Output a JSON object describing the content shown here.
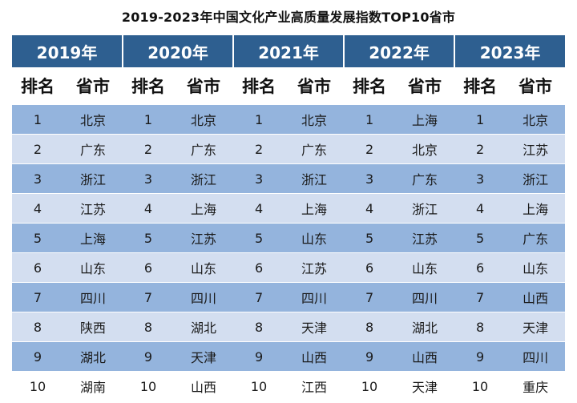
{
  "title": "2019-2023年中国文化产业高质量发展指数TOP10省市",
  "years": [
    "2019年",
    "2020年",
    "2021年",
    "2022年",
    "2023年"
  ],
  "col_headers": {
    "rank": "排名",
    "province": "省市"
  },
  "rows": [
    {
      "rank": "1",
      "p": [
        "北京",
        "北京",
        "北京",
        "上海",
        "北京"
      ]
    },
    {
      "rank": "2",
      "p": [
        "广东",
        "广东",
        "广东",
        "北京",
        "江苏"
      ]
    },
    {
      "rank": "3",
      "p": [
        "浙江",
        "浙江",
        "浙江",
        "广东",
        "浙江"
      ]
    },
    {
      "rank": "4",
      "p": [
        "江苏",
        "上海",
        "上海",
        "浙江",
        "上海"
      ]
    },
    {
      "rank": "5",
      "p": [
        "上海",
        "江苏",
        "山东",
        "江苏",
        "广东"
      ]
    },
    {
      "rank": "6",
      "p": [
        "山东",
        "山东",
        "江苏",
        "山东",
        "山东"
      ]
    },
    {
      "rank": "7",
      "p": [
        "四川",
        "四川",
        "四川",
        "四川",
        "山西"
      ]
    },
    {
      "rank": "8",
      "p": [
        "陕西",
        "湖北",
        "天津",
        "湖北",
        "天津"
      ]
    },
    {
      "rank": "9",
      "p": [
        "湖北",
        "天津",
        "山西",
        "山西",
        "四川"
      ]
    },
    {
      "rank": "10",
      "p": [
        "湖南",
        "山西",
        "江西",
        "天津",
        "重庆"
      ]
    }
  ],
  "colors": {
    "header_blue": "#2e5f90",
    "row_dark": "#94b4dd",
    "row_light": "#d3def0"
  }
}
